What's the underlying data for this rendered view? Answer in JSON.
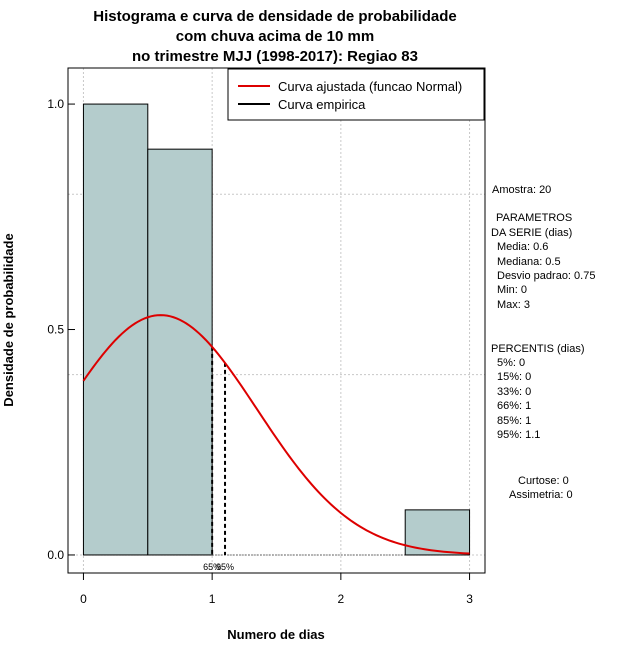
{
  "chart_data": {
    "type": "bar",
    "title": [
      "Histograma e curva de densidade de probabilidade",
      "com chuva acima de 10 mm",
      "no trimestre MJJ (1998-2017): Regiao 83"
    ],
    "xlabel": "Numero de dias",
    "ylabel": "Densidade de probabilidade",
    "xlim": [
      -0.12,
      3.12
    ],
    "ylim": [
      -0.04,
      1.08
    ],
    "x_ticks": [
      0,
      1,
      2,
      3
    ],
    "y_ticks": [
      0.0,
      0.5,
      1.0
    ],
    "y_tick_labels": [
      "0.0",
      "0.5",
      "1.0"
    ],
    "grid": true,
    "bins": [
      {
        "start": 0.0,
        "end": 0.5,
        "density": 1.0
      },
      {
        "start": 0.5,
        "end": 1.0,
        "density": 0.9
      },
      {
        "start": 2.5,
        "end": 3.0,
        "density": 0.1
      }
    ],
    "fitted_curve": {
      "name": "Curva ajustada (funcao Normal)",
      "distribution": "normal",
      "mean": 0.6,
      "sd": 0.75,
      "color": "#dd0000",
      "x_range": [
        0,
        3
      ]
    },
    "empirical_curve": {
      "name": "Curva empirica",
      "color": "#000000"
    },
    "percentile_lines": [
      {
        "x": 1.0,
        "label": "65%"
      },
      {
        "x": 1.1,
        "label": "95%"
      }
    ],
    "legend": [
      "Curva ajustada (funcao Normal)",
      "Curva empirica"
    ],
    "legend_position": "top-right",
    "bar_color": "#b4cccc"
  },
  "side_panel": {
    "amostra": "Amostra: 20",
    "parametros_title_1": "PARAMETROS",
    "parametros_title_2": "DA SERIE (dias)",
    "media": "Media: 0.6",
    "mediana": "Mediana: 0.5",
    "desvio": "Desvio padrao: 0.75",
    "min": "Min: 0",
    "max": "Max: 3",
    "percentis_title": "PERCENTIS (dias)",
    "p5": "5%: 0",
    "p15": "15%: 0",
    "p33": "33%: 0",
    "p66": "66%: 1",
    "p85": "85%: 1",
    "p95": "95%: 1.1",
    "curtose": "Curtose: 0",
    "assimetria": "Assimetria: 0"
  }
}
